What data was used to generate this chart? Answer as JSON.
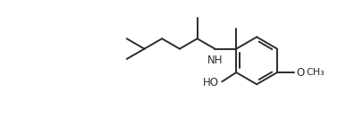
{
  "bg_color": "#ffffff",
  "line_color": "#2d2d2d",
  "line_width": 1.4,
  "font_size": 8.5,
  "figsize": [
    3.87,
    1.32
  ],
  "dpi": 100,
  "xlim": [
    0,
    10.5
  ],
  "ylim": [
    0.2,
    3.6
  ]
}
